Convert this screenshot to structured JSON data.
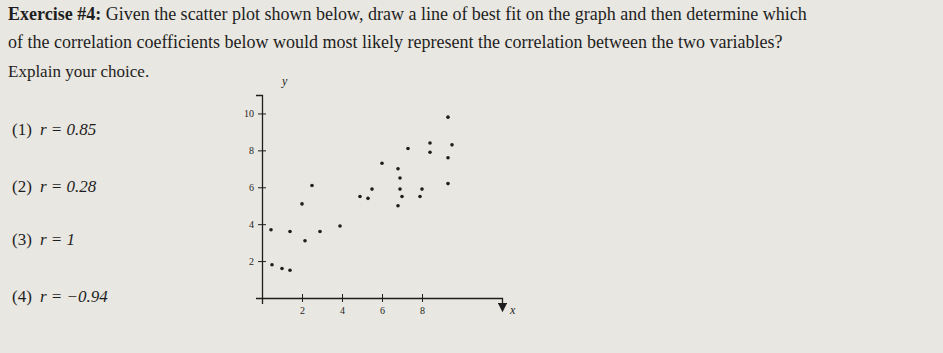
{
  "document": {
    "heading": "Exercise #4:",
    "lines": [
      "Given the scatter plot shown below, draw a line of best fit on the graph and then determine which",
      "of the correlation coefficients below would most likely represent the correlation between the two variables?",
      "Explain your choice."
    ],
    "options": [
      {
        "label": "(1)",
        "text": "r = 0.85"
      },
      {
        "label": "(2)",
        "text": "r = 0.28"
      },
      {
        "label": "(3)",
        "text": "r = 1"
      },
      {
        "label": "(4)",
        "text": "r = −0.94"
      }
    ]
  },
  "chart_data": {
    "type": "scatter",
    "x_label": "x",
    "y_label": "y",
    "x": [
      0.45,
      0.5,
      1.0,
      1.4,
      1.4,
      2.15,
      2.9,
      3.9,
      2.0,
      2.5,
      4.9,
      5.3,
      5.5,
      6.0,
      6.8,
      6.9,
      6.9,
      7.0,
      6.8,
      7.9,
      8.0,
      9.3,
      7.3,
      8.4,
      8.4,
      9.3,
      9.5,
      9.3
    ],
    "values": [
      3.7,
      1.8,
      1.6,
      1.5,
      3.6,
      3.1,
      3.6,
      3.9,
      5.1,
      6.1,
      5.5,
      5.4,
      5.9,
      7.3,
      7.0,
      6.5,
      5.9,
      5.5,
      5.0,
      5.5,
      5.9,
      6.2,
      8.1,
      8.4,
      7.9,
      7.6,
      8.3,
      9.8
    ],
    "color": "#1e1e1e",
    "xlim": [
      0,
      12
    ],
    "ylim": [
      0,
      11
    ],
    "xticks": [
      2,
      4,
      6,
      8
    ],
    "yticks": [
      2,
      4,
      6,
      8,
      10
    ]
  }
}
